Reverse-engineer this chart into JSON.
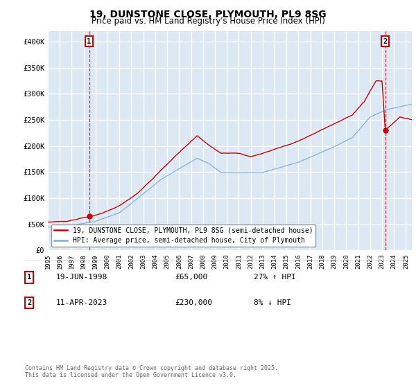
{
  "title_line1": "19, DUNSTONE CLOSE, PLYMOUTH, PL9 8SG",
  "title_line2": "Price paid vs. HM Land Registry's House Price Index (HPI)",
  "ylim": [
    0,
    420000
  ],
  "yticks": [
    0,
    50000,
    100000,
    150000,
    200000,
    250000,
    300000,
    350000,
    400000
  ],
  "ytick_labels": [
    "£0",
    "£50K",
    "£100K",
    "£150K",
    "£200K",
    "£250K",
    "£300K",
    "£350K",
    "£400K"
  ],
  "hpi_color": "#7bafd4",
  "price_color": "#cc0000",
  "marker_color": "#cc0000",
  "background_color": "#dce9f5",
  "grid_color": "#ffffff",
  "legend_label_price": "19, DUNSTONE CLOSE, PLYMOUTH, PL9 8SG (semi-detached house)",
  "legend_label_hpi": "HPI: Average price, semi-detached house, City of Plymouth",
  "annotation1_label": "1",
  "annotation1_date": "19-JUN-1998",
  "annotation1_price": "£65,000",
  "annotation1_hpi": "27% ↑ HPI",
  "annotation2_label": "2",
  "annotation2_date": "11-APR-2023",
  "annotation2_price": "£230,000",
  "annotation2_hpi": "8% ↓ HPI",
  "footer": "Contains HM Land Registry data © Crown copyright and database right 2025.\nThis data is licensed under the Open Government Licence v3.0.",
  "sale1_year": 1998.46,
  "sale1_price": 65000,
  "sale2_year": 2023.27,
  "sale2_price": 230000,
  "xlim_left": 1995.0,
  "xlim_right": 2025.5
}
